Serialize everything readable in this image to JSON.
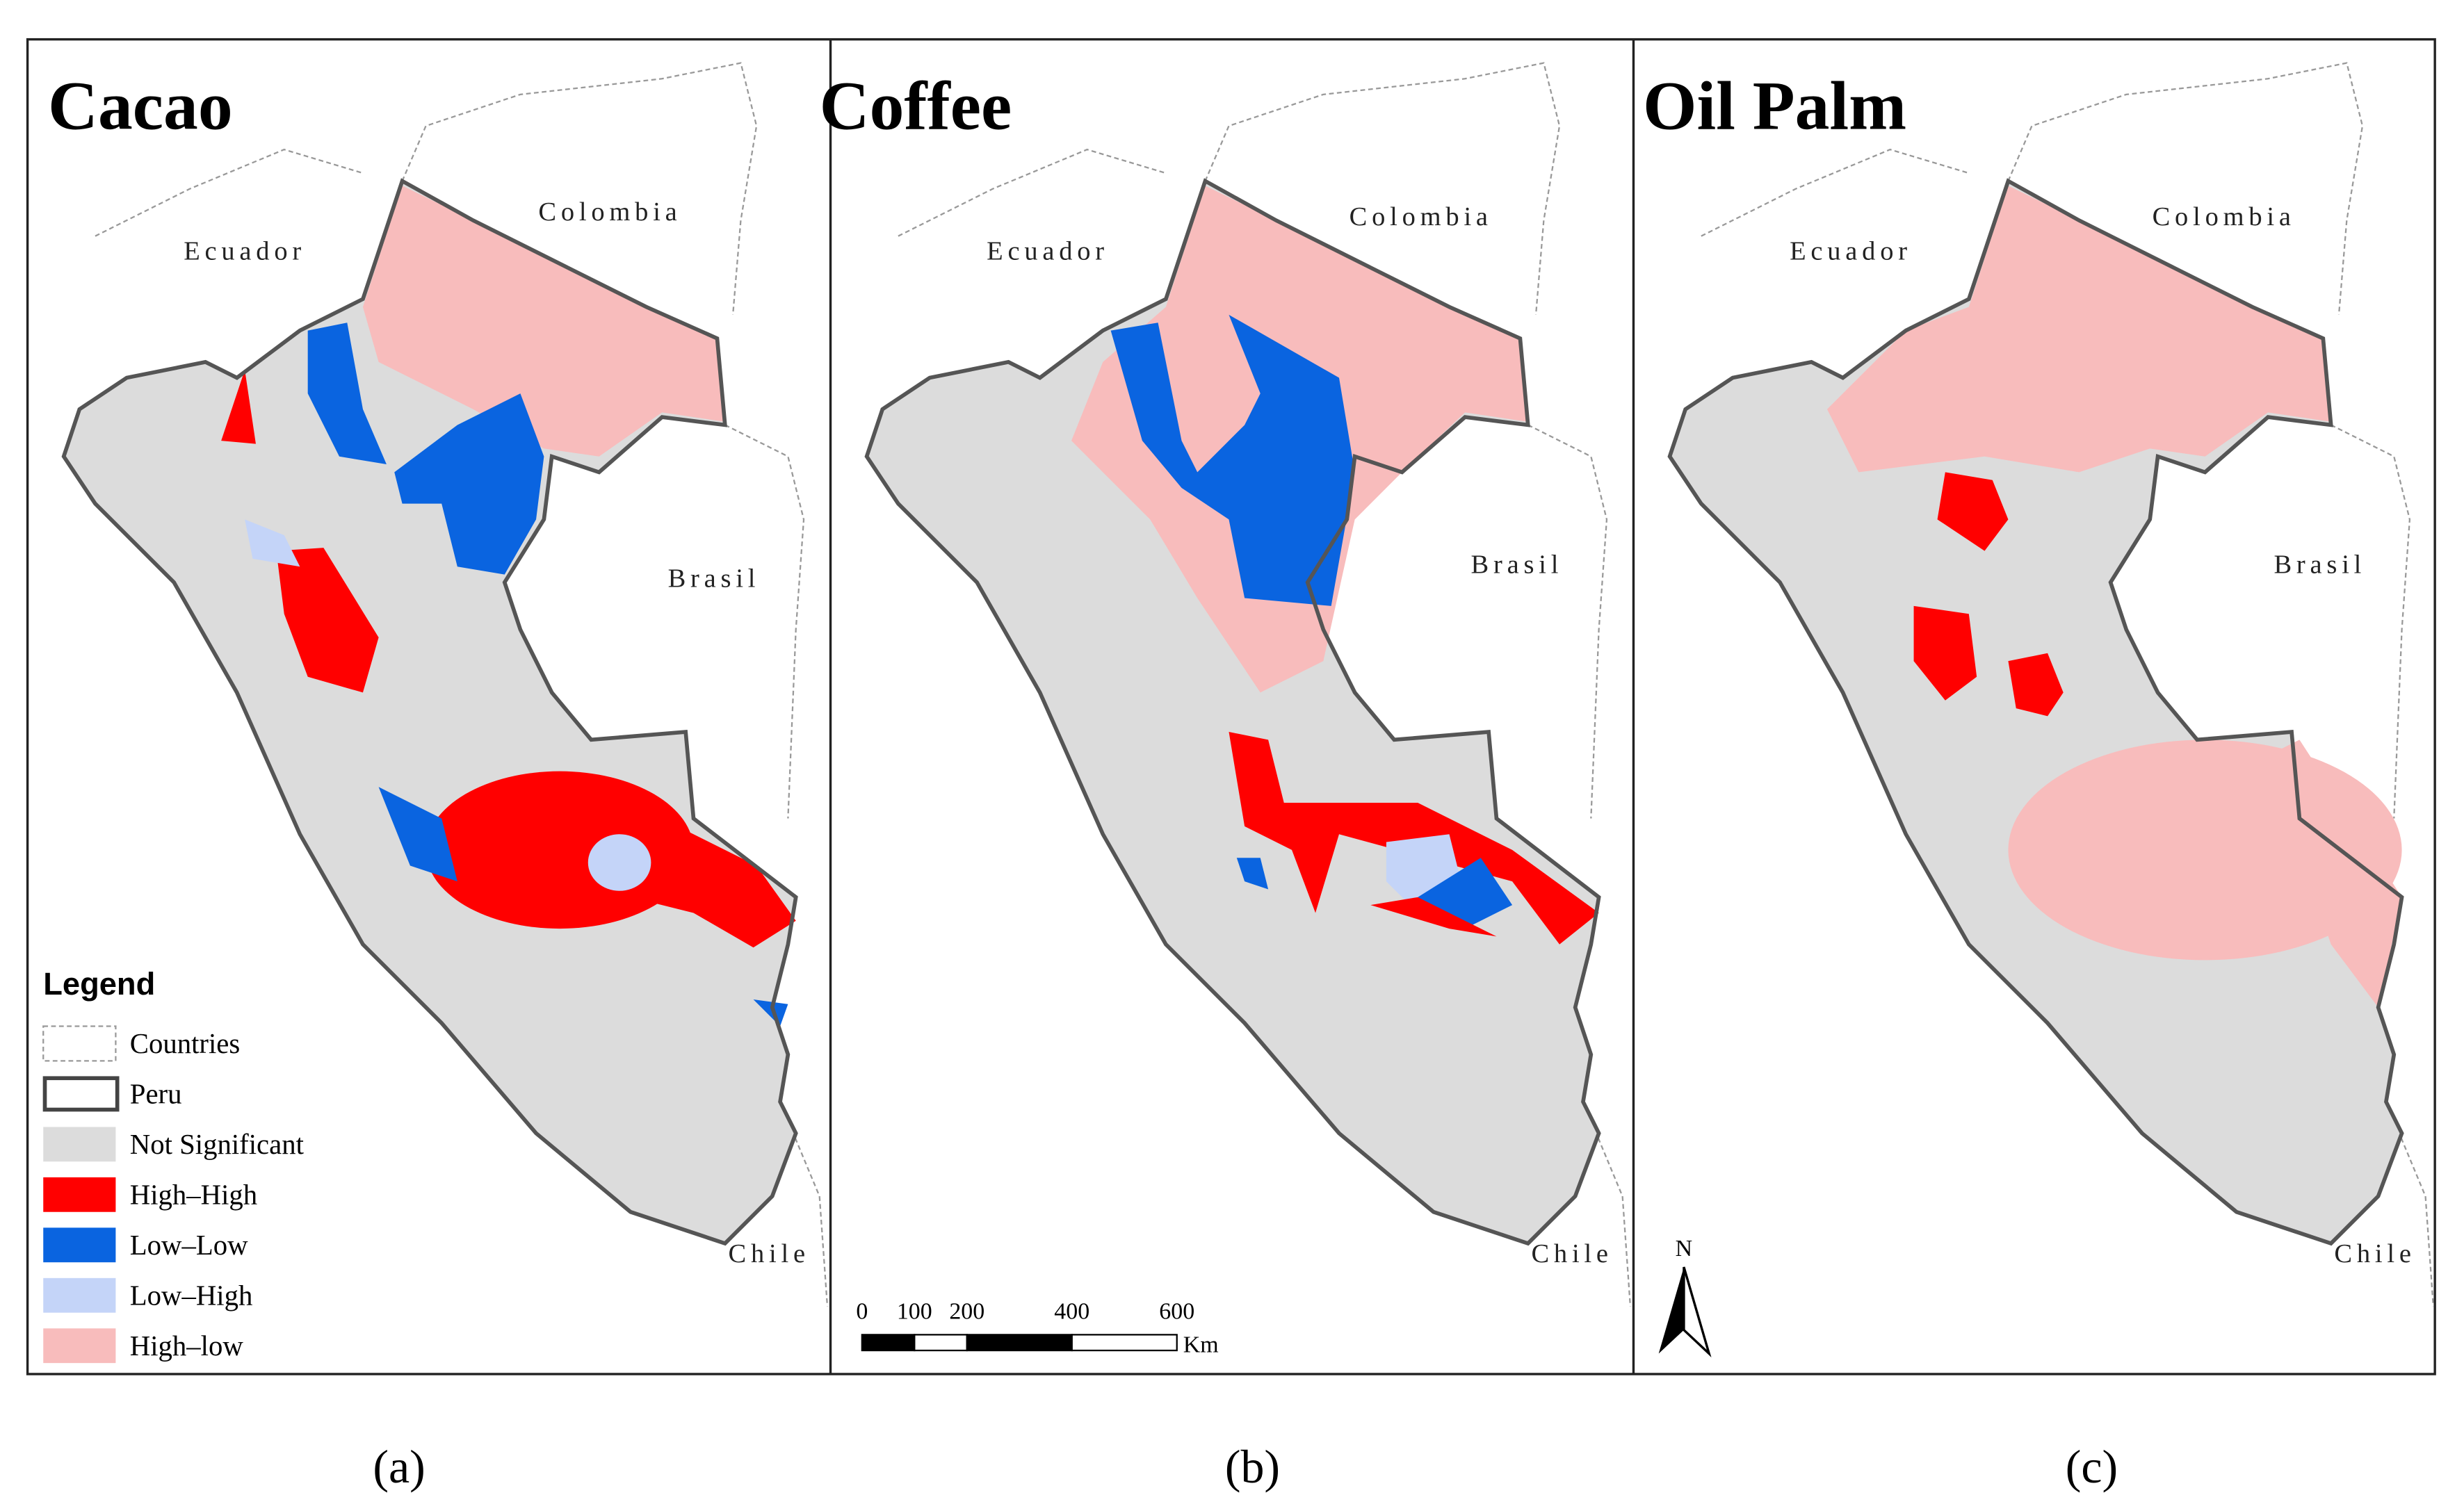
{
  "panels": [
    {
      "title": "Cacao",
      "countries": [
        "Ecuador",
        "Colombia",
        "Brasil",
        "Chile"
      ],
      "label": "(a)"
    },
    {
      "title": "Coffee",
      "countries": [
        "Ecuador",
        "Colombia",
        "Brasil",
        "Chile"
      ],
      "label": "(b)"
    },
    {
      "title": "Oil Palm",
      "countries": [
        "Ecuador",
        "Colombia",
        "Brasil",
        "Chile"
      ],
      "label": "(c)"
    }
  ],
  "legend": {
    "title": "Legend",
    "items": [
      {
        "label": "Countries",
        "color": "#ffffff"
      },
      {
        "label": "Peru",
        "color": "#ffffff"
      },
      {
        "label": "Not Significant",
        "color": "#dcdcdc"
      },
      {
        "label": "High–High",
        "color": "#ff0000"
      },
      {
        "label": "Low–Low",
        "color": "#0a64e0"
      },
      {
        "label": "Low–High",
        "color": "#c4d4f8"
      },
      {
        "label": "High–low",
        "color": "#f8bcbc"
      }
    ]
  },
  "scale_bar": {
    "ticks": [
      0,
      100,
      200,
      400,
      600
    ],
    "unit": "Km"
  },
  "north_arrow": "N"
}
